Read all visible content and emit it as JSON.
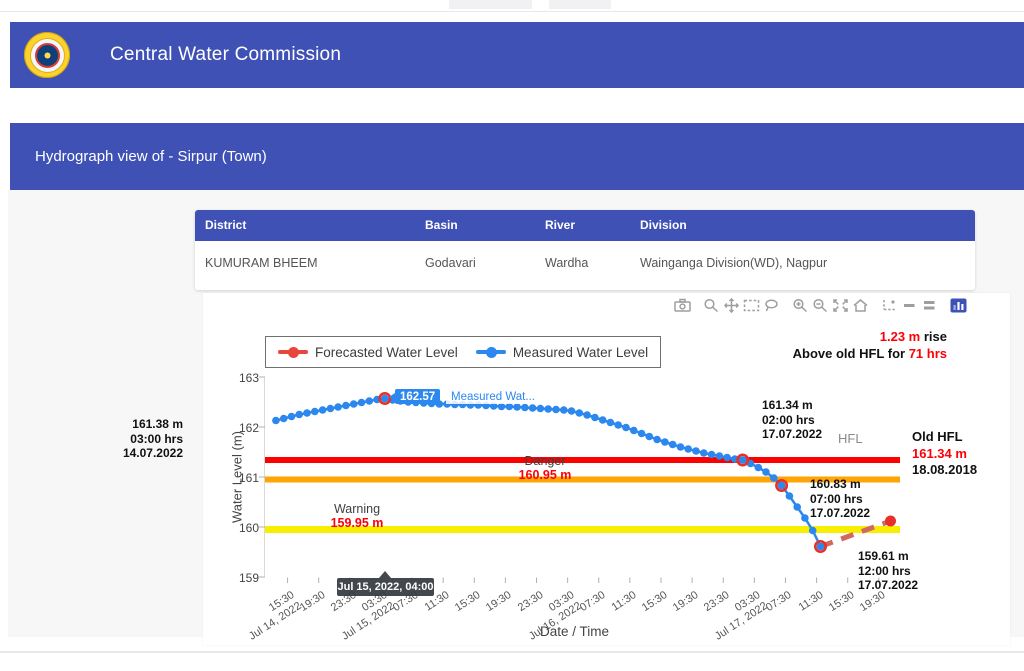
{
  "header": {
    "title": "Central Water Commission",
    "logo": "cwc-emblem"
  },
  "subheader": {
    "title": "Hydrograph view of - Sirpur (Town)"
  },
  "station_table": {
    "columns": [
      "District",
      "Basin",
      "River",
      "Division"
    ],
    "rows": [
      [
        "KUMURAM BHEEM",
        "Godavari",
        "Wardha",
        "Wainganga Division(WD), Nagpur"
      ]
    ]
  },
  "modebar": {
    "icons": [
      {
        "name": "camera-icon"
      },
      {
        "name": "zoom-icon"
      },
      {
        "name": "pan-icon"
      },
      {
        "name": "box-select-icon"
      },
      {
        "name": "lasso-select-icon"
      },
      {
        "name": "zoom-in-icon"
      },
      {
        "name": "zoom-out-icon"
      },
      {
        "name": "autoscale-icon"
      },
      {
        "name": "reset-axes-icon"
      },
      {
        "name": "toggle-spike-lines-icon"
      },
      {
        "name": "hover-closest-icon"
      },
      {
        "name": "hover-compare-icon"
      },
      {
        "name": "plotly-logo-icon"
      }
    ]
  },
  "legend": {
    "items": [
      {
        "label": "Forecasted Water Level",
        "color": "#e8453c"
      },
      {
        "label": "Measured Water Level",
        "color": "#2c88ee"
      }
    ]
  },
  "annotations": {
    "rise": {
      "value": "1.23 m",
      "suffix": " rise",
      "line2_prefix": "Above old HFL for ",
      "line2_value": "71 hrs"
    },
    "left_station": {
      "value": "161.38 m",
      "time": "03:00 hrs",
      "date": "14.07.2022"
    },
    "hfl_cross": {
      "value": "161.34 m",
      "time": "02:00 hrs",
      "date": "17.07.2022"
    },
    "hfl_label": "HFL",
    "old_hfl": {
      "title": "Old HFL",
      "value": "161.34 m",
      "date": "18.08.2018"
    },
    "danger_cross": {
      "value": "160.83 m",
      "time": "07:00 hrs",
      "date": "17.07.2022"
    },
    "low_point": {
      "value": "159.61 m",
      "time": "12:00 hrs",
      "date": "17.07.2022"
    }
  },
  "hover": {
    "value": "162.57",
    "series_hint": "Measured Wat...",
    "axis_label": "Jul 15, 2022, 04:00"
  },
  "chart_data": {
    "type": "line",
    "xlabel": "Date / Time",
    "ylabel": "Water Level (m)",
    "ylim": [
      159,
      163
    ],
    "y_ticks": [
      159,
      160,
      161,
      162,
      163
    ],
    "x_ticks": [
      {
        "t": 15.5,
        "label": "15:30",
        "date": "Jul 14, 2022"
      },
      {
        "t": 19.5,
        "label": "19:30"
      },
      {
        "t": 23.5,
        "label": "23:30"
      },
      {
        "t": 27.5,
        "label": "03:30",
        "date": "Jul 15, 2022"
      },
      {
        "t": 31.5,
        "label": "07:30"
      },
      {
        "t": 35.5,
        "label": "11:30"
      },
      {
        "t": 39.5,
        "label": "15:30"
      },
      {
        "t": 43.5,
        "label": "19:30"
      },
      {
        "t": 47.5,
        "label": "23:30"
      },
      {
        "t": 51.5,
        "label": "03:30",
        "date": "Jul 16, 2022"
      },
      {
        "t": 55.5,
        "label": "07:30"
      },
      {
        "t": 59.5,
        "label": "11:30"
      },
      {
        "t": 63.5,
        "label": "15:30"
      },
      {
        "t": 67.5,
        "label": "19:30"
      },
      {
        "t": 71.5,
        "label": "23:30"
      },
      {
        "t": 75.5,
        "label": "03:30",
        "date": "Jul 17, 2022"
      },
      {
        "t": 79.5,
        "label": "07:30"
      },
      {
        "t": 83.5,
        "label": "11:30"
      },
      {
        "t": 87.5,
        "label": "15:30"
      },
      {
        "t": 91.5,
        "label": "19:30"
      }
    ],
    "time_unit": "hours since Jul 14, 2022 00:00",
    "series": [
      {
        "name": "Forecasted Water Level",
        "color": "#cf6a60",
        "marker_color": "#e8302a",
        "style": "dashed",
        "points": [
          [
            84,
            159.61
          ],
          [
            93,
            160.12
          ]
        ]
      },
      {
        "name": "Measured Water Level",
        "color": "#2c88ee",
        "style": "line+dots",
        "points": [
          [
            14,
            162.13
          ],
          [
            15,
            162.17
          ],
          [
            16,
            162.21
          ],
          [
            17,
            162.25
          ],
          [
            18,
            162.28
          ],
          [
            19,
            162.31
          ],
          [
            20,
            162.34
          ],
          [
            21,
            162.37
          ],
          [
            22,
            162.4
          ],
          [
            23,
            162.43
          ],
          [
            24,
            162.46
          ],
          [
            25,
            162.49
          ],
          [
            26,
            162.52
          ],
          [
            27,
            162.55
          ],
          [
            28,
            162.57
          ],
          [
            29,
            162.54
          ],
          [
            30,
            162.52
          ],
          [
            31,
            162.5
          ],
          [
            32,
            162.49
          ],
          [
            33,
            162.48
          ],
          [
            34,
            162.47
          ],
          [
            35,
            162.46
          ],
          [
            36,
            162.46
          ],
          [
            37,
            162.45
          ],
          [
            38,
            162.45
          ],
          [
            39,
            162.44
          ],
          [
            40,
            162.44
          ],
          [
            41,
            162.43
          ],
          [
            42,
            162.42
          ],
          [
            43,
            162.41
          ],
          [
            44,
            162.41
          ],
          [
            45,
            162.4
          ],
          [
            46,
            162.39
          ],
          [
            47,
            162.38
          ],
          [
            48,
            162.37
          ],
          [
            49,
            162.36
          ],
          [
            50,
            162.35
          ],
          [
            51,
            162.34
          ],
          [
            52,
            162.32
          ],
          [
            53,
            162.28
          ],
          [
            54,
            162.24
          ],
          [
            55,
            162.19
          ],
          [
            56,
            162.14
          ],
          [
            57,
            162.09
          ],
          [
            58,
            162.04
          ],
          [
            59,
            161.99
          ],
          [
            60,
            161.93
          ],
          [
            61,
            161.87
          ],
          [
            62,
            161.81
          ],
          [
            63,
            161.75
          ],
          [
            64,
            161.7
          ],
          [
            65,
            161.65
          ],
          [
            66,
            161.6
          ],
          [
            67,
            161.56
          ],
          [
            68,
            161.52
          ],
          [
            69,
            161.48
          ],
          [
            70,
            161.45
          ],
          [
            71,
            161.42
          ],
          [
            72,
            161.39
          ],
          [
            73,
            161.36
          ],
          [
            74,
            161.34
          ],
          [
            75,
            161.27
          ],
          [
            76,
            161.19
          ],
          [
            77,
            161.1
          ],
          [
            78,
            160.98
          ],
          [
            79,
            160.83
          ],
          [
            80,
            160.62
          ],
          [
            81,
            160.4
          ],
          [
            82,
            160.18
          ],
          [
            83,
            159.93
          ],
          [
            84,
            159.61
          ]
        ]
      }
    ],
    "highlighted_points": [
      [
        28,
        162.57
      ],
      [
        74,
        161.34
      ],
      [
        79,
        160.83
      ],
      [
        84,
        159.61
      ]
    ],
    "ref_lines": [
      {
        "label": "HFL",
        "value": 161.34,
        "color": "#fe0000"
      },
      {
        "label": "Danger",
        "value": 160.95,
        "value_text": "160.95 m",
        "color": "#ffa405"
      },
      {
        "label": "Warning",
        "value": 159.95,
        "value_text": "159.95 m",
        "color": "#f8ef00"
      }
    ],
    "legend_position": "top-left",
    "grid": false
  }
}
